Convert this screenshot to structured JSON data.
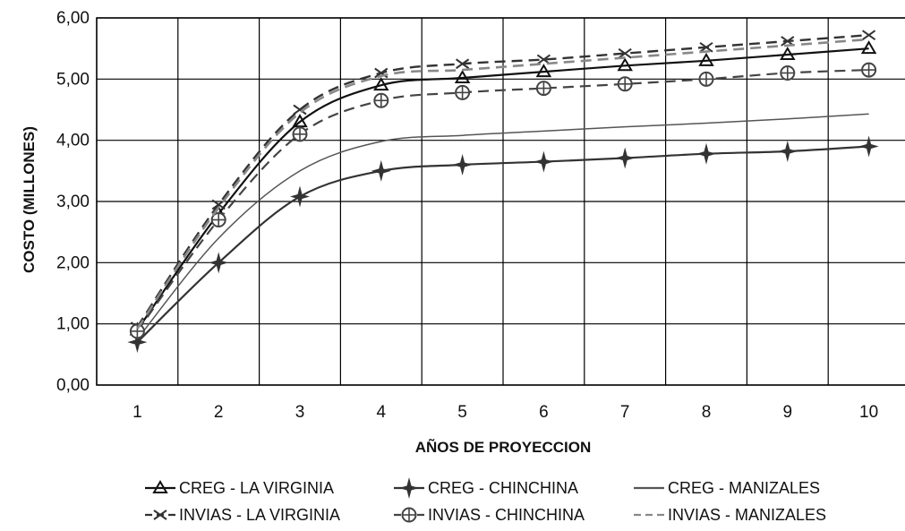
{
  "chart_data": {
    "type": "line",
    "title": "",
    "xlabel": "AÑOS DE PROYECCION",
    "ylabel": "COSTO (MILLONES)",
    "x": [
      1,
      2,
      3,
      4,
      5,
      6,
      7,
      8,
      9,
      10
    ],
    "x_tick_labels": [
      "1",
      "2",
      "3",
      "4",
      "5",
      "6",
      "7",
      "8",
      "9",
      "10"
    ],
    "y_tick_labels": [
      "0,00",
      "1,00",
      "2,00",
      "3,00",
      "4,00",
      "5,00",
      "6,00"
    ],
    "ylim": [
      0,
      6
    ],
    "xlim": [
      0.5,
      10.5
    ],
    "grid": true,
    "legend_position": "bottom",
    "series": [
      {
        "name": "CREG - LA VIRGINIA",
        "marker": "triangle",
        "line": "solid",
        "color": "#111111",
        "values": [
          0.9,
          2.8,
          4.3,
          4.9,
          5.02,
          5.12,
          5.22,
          5.3,
          5.4,
          5.5
        ]
      },
      {
        "name": "CREG - CHINCHINA",
        "marker": "star4",
        "line": "solid",
        "color": "#333333",
        "values": [
          0.7,
          2.0,
          3.08,
          3.5,
          3.6,
          3.65,
          3.71,
          3.78,
          3.82,
          3.9
        ]
      },
      {
        "name": "CREG - MANIZALES",
        "marker": "none",
        "line": "solid",
        "color": "#555555",
        "values": [
          0.75,
          2.4,
          3.5,
          3.98,
          4.08,
          4.15,
          4.22,
          4.28,
          4.35,
          4.43
        ]
      },
      {
        "name": "INVIAS - LA VIRGINIA",
        "marker": "x",
        "line": "dashed",
        "color": "#333333",
        "values": [
          0.95,
          2.95,
          4.5,
          5.1,
          5.25,
          5.32,
          5.42,
          5.52,
          5.62,
          5.72
        ]
      },
      {
        "name": "INVIAS - CHINCHINA",
        "marker": "circle-plus",
        "line": "dashed",
        "color": "#444444",
        "values": [
          0.88,
          2.7,
          4.1,
          4.65,
          4.78,
          4.85,
          4.92,
          5.0,
          5.1,
          5.15
        ]
      },
      {
        "name": "INVIAS - MANIZALES",
        "marker": "none",
        "line": "dashed",
        "color": "#888888",
        "values": [
          0.92,
          2.9,
          4.45,
          5.05,
          5.15,
          5.25,
          5.35,
          5.45,
          5.55,
          5.65
        ]
      }
    ]
  },
  "legend": [
    {
      "label": "CREG - LA VIRGINIA"
    },
    {
      "label": "CREG - CHINCHINA"
    },
    {
      "label": "CREG - MANIZALES"
    },
    {
      "label": "INVIAS - LA VIRGINIA"
    },
    {
      "label": "INVIAS - CHINCHINA"
    },
    {
      "label": "INVIAS - MANIZALES"
    }
  ]
}
